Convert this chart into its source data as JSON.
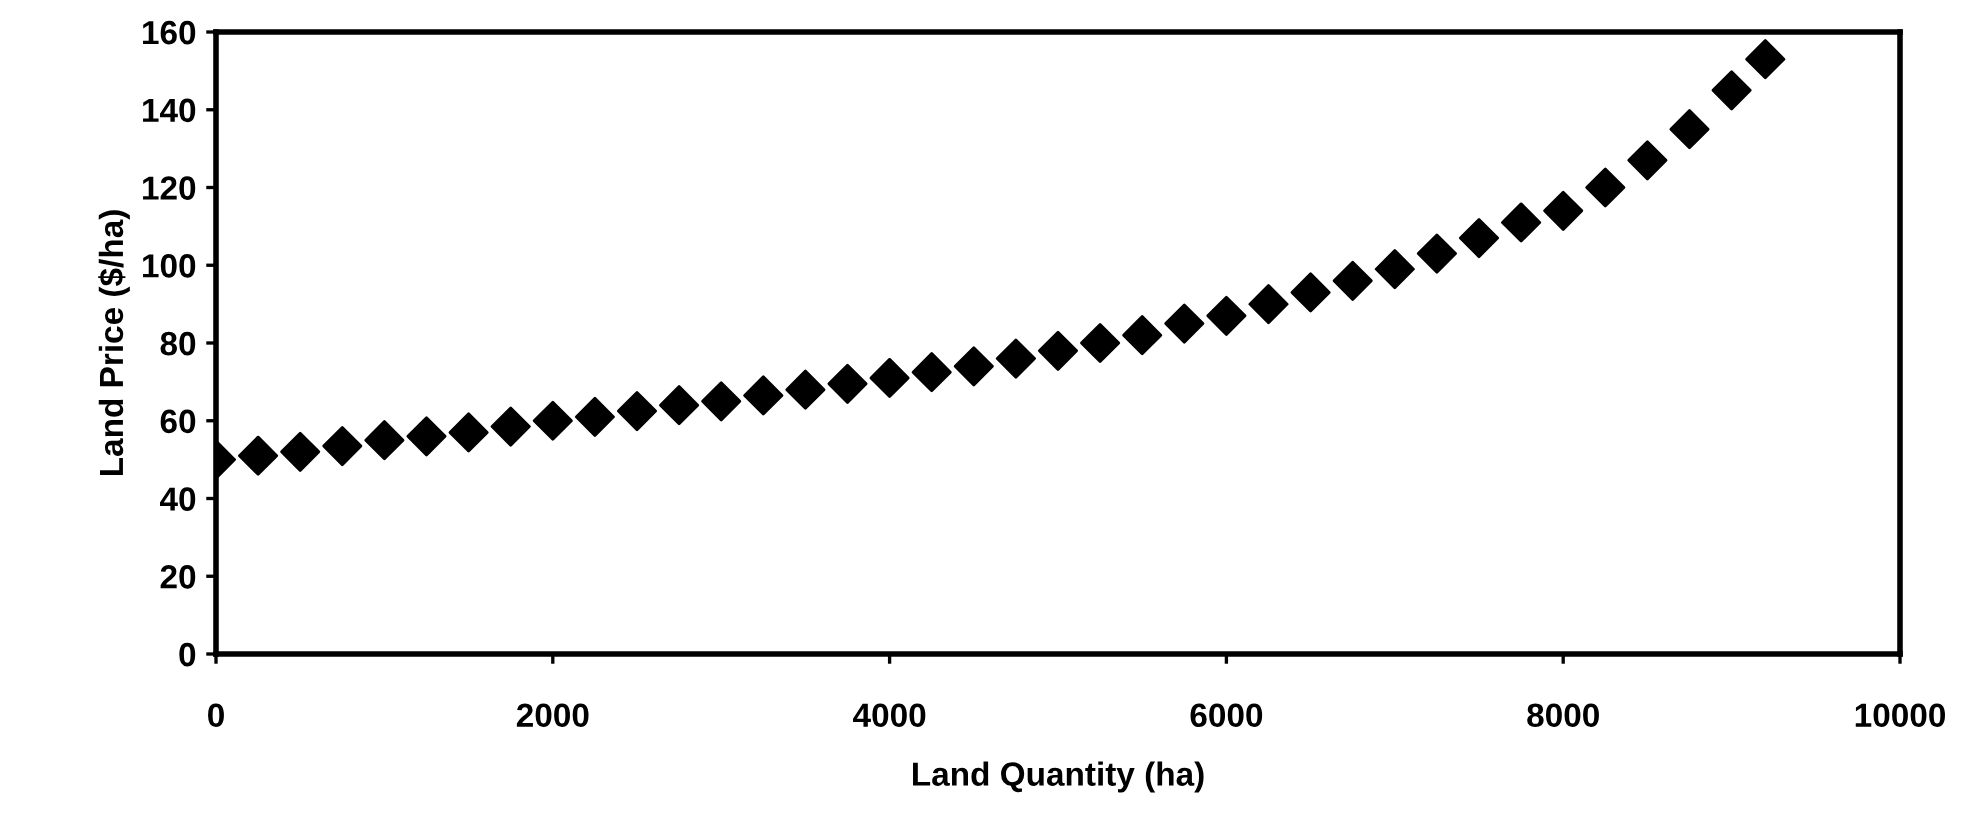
{
  "chart_data": {
    "type": "scatter",
    "xlabel": "Land Quantity (ha)",
    "ylabel": "Land Price ($/ha)",
    "x": [
      0,
      250,
      500,
      750,
      1000,
      1250,
      1500,
      1750,
      2000,
      2250,
      2500,
      2750,
      3000,
      3250,
      3500,
      3750,
      4000,
      4250,
      4500,
      4750,
      5000,
      5250,
      5500,
      5750,
      6000,
      6250,
      6500,
      6750,
      7000,
      7250,
      7500,
      7750,
      8000,
      8250,
      8500,
      8750,
      9000,
      9200
    ],
    "series": [
      {
        "color": "#000000",
        "values": [
          50,
          51,
          52,
          53.5,
          55,
          56,
          57,
          58.5,
          60,
          61,
          62.5,
          64,
          65,
          66.5,
          68,
          69.5,
          71,
          72.5,
          74,
          76,
          78,
          80,
          82,
          85,
          87,
          90,
          93,
          96,
          99,
          103,
          107,
          111,
          114,
          120,
          127,
          135,
          145,
          153
        ]
      }
    ],
    "marker": "diamond",
    "xlim": [
      0,
      10000
    ],
    "ylim": [
      0,
      160
    ],
    "xticks": [
      0,
      2000,
      4000,
      6000,
      8000,
      10000
    ],
    "yticks": [
      0,
      20,
      40,
      60,
      80,
      100,
      120,
      140,
      160
    ],
    "grid": false,
    "legend": false
  }
}
